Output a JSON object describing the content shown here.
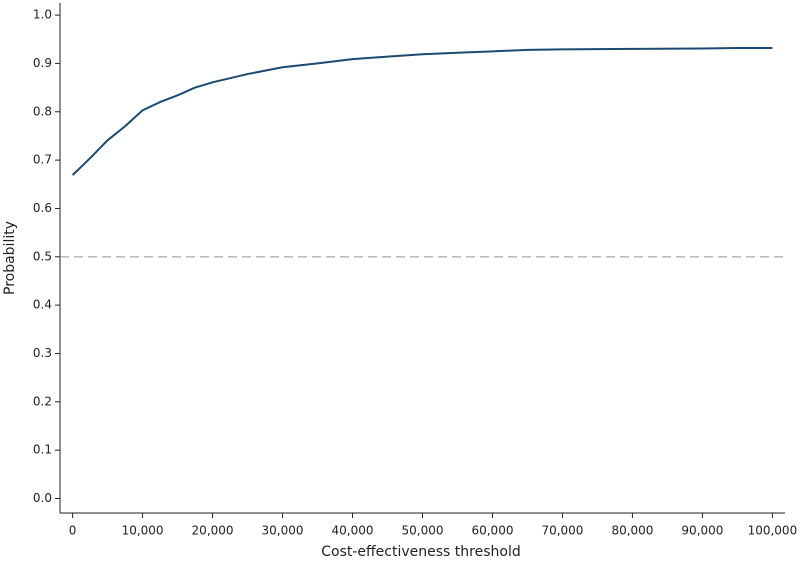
{
  "chart_data": {
    "type": "line",
    "xlabel": "Cost-effectiveness threshold",
    "ylabel": "Probability",
    "x": [
      0,
      2500,
      5000,
      7500,
      10000,
      12500,
      15000,
      17500,
      20000,
      25000,
      30000,
      35000,
      40000,
      45000,
      50000,
      55000,
      60000,
      65000,
      70000,
      80000,
      90000,
      95000,
      100000
    ],
    "values": [
      0.669,
      0.704,
      0.741,
      0.77,
      0.803,
      0.82,
      0.834,
      0.85,
      0.861,
      0.878,
      0.892,
      0.9,
      0.909,
      0.914,
      0.919,
      0.922,
      0.925,
      0.928,
      0.929,
      0.93,
      0.931,
      0.932,
      0.932
    ],
    "color": "#1b4a72",
    "reference_line": 0.5,
    "reference_color": "#b0b0b0",
    "xlim": [
      -1800,
      101800
    ],
    "ylim": [
      -0.03,
      1.025
    ],
    "xticks": [
      0,
      {
        "value": 10000,
        "label": "10,000"
      },
      {
        "value": 20000,
        "label": "20,000"
      },
      {
        "value": 30000,
        "label": "30,000"
      },
      {
        "value": 40000,
        "label": "40,000"
      },
      {
        "value": 50000,
        "label": "50,000"
      },
      {
        "value": 60000,
        "label": "60,000"
      },
      {
        "value": 70000,
        "label": "70,000"
      },
      {
        "value": 80000,
        "label": "80,000"
      },
      {
        "value": 90000,
        "label": "90,000"
      },
      {
        "value": 100000,
        "label": "100,000"
      }
    ],
    "yticks": [
      {
        "value": 0,
        "label": "0.0"
      },
      0.1,
      0.2,
      0.3,
      0.4,
      0.5,
      0.6,
      0.7,
      0.8,
      0.9,
      {
        "value": 1,
        "label": "1.0"
      }
    ],
    "grid": false
  }
}
